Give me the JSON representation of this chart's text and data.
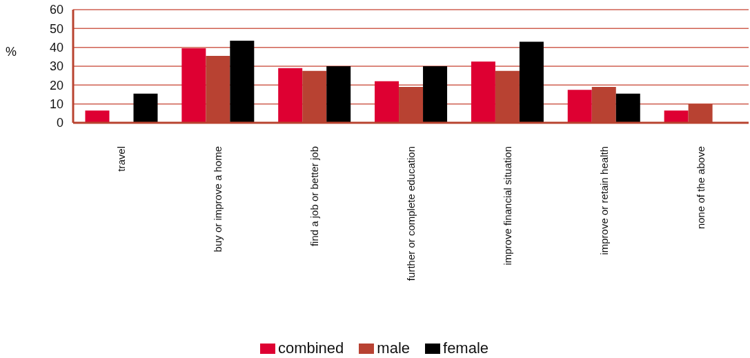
{
  "chart_data": {
    "type": "bar",
    "ylabel": "%",
    "categories": [
      "travel",
      "buy or improve a home",
      "find a job or better job",
      "further or complete education",
      "improve financial situation",
      "improve or retain health",
      "none of the above"
    ],
    "series": [
      {
        "name": "combined",
        "color": "#de0032",
        "values": [
          6.5,
          39.5,
          29,
          22,
          32.5,
          17.5,
          6.5
        ]
      },
      {
        "name": "male",
        "color": "#b84232",
        "values": [
          null,
          35.5,
          27.5,
          19,
          27.5,
          19,
          10
        ]
      },
      {
        "name": "female",
        "color": "#000000",
        "values": [
          15.5,
          43.5,
          30,
          30,
          43,
          15.5,
          null
        ]
      }
    ],
    "ylim": [
      0,
      60
    ],
    "yticks": [
      0,
      10,
      20,
      30,
      40,
      50,
      60
    ],
    "grid": "y",
    "legend": "bottom"
  }
}
